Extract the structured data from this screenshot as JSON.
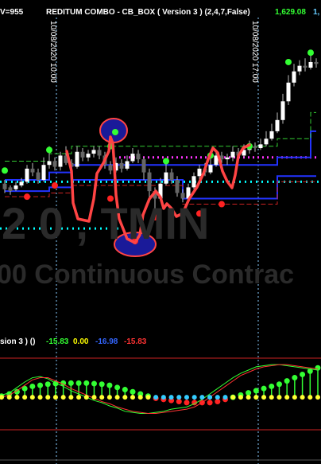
{
  "header": {
    "volume": "V=955",
    "study": "REDITUM COMBO - CB_BOX ( Version 3 ) (2,4,7,False)",
    "last_value": "1,629.08",
    "last_value_2": "1,",
    "colors": {
      "text": "#ffffff",
      "value": "#33ff33",
      "value2": "#66ccff"
    }
  },
  "time_markers": [
    "10/08/2020 10:00",
    "10/08/2020 17:00"
  ],
  "watermark": {
    "line1": "2 0 , ΤΜΙΝ",
    "line2": "00 Continuous Contrac"
  },
  "indicator_header": {
    "name": "sion 3 ) ()",
    "values": [
      "-15.83",
      "0.00",
      "-16.98",
      "-15.83"
    ],
    "colors": [
      "#33ff33",
      "#ffff00",
      "#3366ff",
      "#ff3333"
    ]
  },
  "chart_data": [
    {
      "type": "candlestick",
      "title": "",
      "candles": [
        {
          "o": 38,
          "c": 35,
          "h": 40,
          "l": 33
        },
        {
          "o": 36,
          "c": 34,
          "h": 37,
          "l": 32
        },
        {
          "o": 35,
          "c": 37,
          "h": 39,
          "l": 34
        },
        {
          "o": 37,
          "c": 39,
          "h": 41,
          "l": 36
        },
        {
          "o": 39,
          "c": 46,
          "h": 48,
          "l": 38
        },
        {
          "o": 46,
          "c": 44,
          "h": 49,
          "l": 42
        },
        {
          "o": 44,
          "c": 40,
          "h": 46,
          "l": 38
        },
        {
          "o": 40,
          "c": 48,
          "h": 52,
          "l": 39
        },
        {
          "o": 48,
          "c": 50,
          "h": 58,
          "l": 46
        },
        {
          "o": 50,
          "c": 47,
          "h": 52,
          "l": 45
        },
        {
          "o": 47,
          "c": 53,
          "h": 55,
          "l": 45
        },
        {
          "o": 53,
          "c": 49,
          "h": 58,
          "l": 48
        },
        {
          "o": 49,
          "c": 47,
          "h": 51,
          "l": 44
        },
        {
          "o": 47,
          "c": 55,
          "h": 58,
          "l": 46
        },
        {
          "o": 55,
          "c": 52,
          "h": 57,
          "l": 50
        },
        {
          "o": 52,
          "c": 54,
          "h": 56,
          "l": 50
        },
        {
          "o": 54,
          "c": 56,
          "h": 58,
          "l": 52
        },
        {
          "o": 56,
          "c": 53,
          "h": 58,
          "l": 51
        },
        {
          "o": 53,
          "c": 48,
          "h": 55,
          "l": 46
        },
        {
          "o": 48,
          "c": 45,
          "h": 50,
          "l": 43
        },
        {
          "o": 45,
          "c": 49,
          "h": 52,
          "l": 44
        },
        {
          "o": 49,
          "c": 46,
          "h": 51,
          "l": 44
        },
        {
          "o": 46,
          "c": 50,
          "h": 53,
          "l": 45
        },
        {
          "o": 50,
          "c": 54,
          "h": 57,
          "l": 49
        },
        {
          "o": 54,
          "c": 51,
          "h": 56,
          "l": 49
        },
        {
          "o": 51,
          "c": 44,
          "h": 52,
          "l": 40
        },
        {
          "o": 44,
          "c": 34,
          "h": 46,
          "l": 28
        },
        {
          "o": 34,
          "c": 30,
          "h": 36,
          "l": 24
        },
        {
          "o": 30,
          "c": 38,
          "h": 41,
          "l": 29
        },
        {
          "o": 38,
          "c": 44,
          "h": 50,
          "l": 37
        },
        {
          "o": 44,
          "c": 40,
          "h": 46,
          "l": 38
        },
        {
          "o": 40,
          "c": 33,
          "h": 42,
          "l": 31
        },
        {
          "o": 33,
          "c": 30,
          "h": 35,
          "l": 28
        },
        {
          "o": 30,
          "c": 36,
          "h": 38,
          "l": 29
        },
        {
          "o": 36,
          "c": 42,
          "h": 44,
          "l": 35
        },
        {
          "o": 42,
          "c": 46,
          "h": 48,
          "l": 40
        },
        {
          "o": 46,
          "c": 44,
          "h": 49,
          "l": 42
        },
        {
          "o": 44,
          "c": 48,
          "h": 52,
          "l": 43
        },
        {
          "o": 48,
          "c": 53,
          "h": 56,
          "l": 47
        },
        {
          "o": 53,
          "c": 51,
          "h": 55,
          "l": 49
        },
        {
          "o": 51,
          "c": 52,
          "h": 54,
          "l": 48
        },
        {
          "o": 52,
          "c": 55,
          "h": 58,
          "l": 50
        },
        {
          "o": 55,
          "c": 53,
          "h": 57,
          "l": 51
        },
        {
          "o": 53,
          "c": 56,
          "h": 59,
          "l": 52
        },
        {
          "o": 56,
          "c": 58,
          "h": 61,
          "l": 54
        },
        {
          "o": 58,
          "c": 57,
          "h": 60,
          "l": 55
        },
        {
          "o": 57,
          "c": 59,
          "h": 62,
          "l": 56
        },
        {
          "o": 59,
          "c": 62,
          "h": 66,
          "l": 58
        },
        {
          "o": 62,
          "c": 66,
          "h": 70,
          "l": 61
        },
        {
          "o": 66,
          "c": 72,
          "h": 76,
          "l": 65
        },
        {
          "o": 72,
          "c": 82,
          "h": 86,
          "l": 70
        },
        {
          "o": 82,
          "c": 92,
          "h": 96,
          "l": 80
        },
        {
          "o": 92,
          "c": 98,
          "h": 102,
          "l": 90
        },
        {
          "o": 98,
          "c": 101,
          "h": 104,
          "l": 96
        },
        {
          "o": 101,
          "c": 100,
          "h": 105,
          "l": 98
        },
        {
          "o": 100,
          "c": 103,
          "h": 108,
          "l": 99
        },
        {
          "o": 103,
          "c": 102,
          "h": 105,
          "l": 100
        }
      ],
      "channel_upper": [
        40,
        40,
        40,
        40,
        40,
        40,
        40,
        40,
        44,
        44,
        44,
        44,
        48,
        48,
        48,
        48,
        48,
        48,
        48,
        48,
        48,
        48,
        48,
        48,
        48,
        48,
        48,
        48,
        48,
        48,
        48,
        48,
        48,
        48,
        48,
        48,
        48,
        48,
        48,
        48,
        48,
        48,
        48,
        48,
        48,
        48,
        48,
        48,
        48,
        52,
        52,
        52,
        52,
        52,
        52,
        66,
        66
      ],
      "channel_lower": [
        34,
        34,
        34,
        34,
        34,
        34,
        34,
        34,
        36,
        36,
        36,
        36,
        40,
        40,
        40,
        40,
        40,
        40,
        40,
        40,
        40,
        40,
        40,
        40,
        40,
        40,
        40,
        40,
        40,
        40,
        40,
        40,
        30,
        30,
        30,
        30,
        30,
        30,
        30,
        30,
        30,
        30,
        30,
        30,
        30,
        30,
        30,
        30,
        30,
        42,
        42,
        42,
        42,
        42,
        42,
        42,
        42
      ],
      "magenta_level": 52,
      "cyan_level": 39,
      "cyan_low_level": 14
    },
    {
      "type": "oscillator",
      "series": [
        {
          "values": [
            0.1,
            0.3,
            0.5,
            0.8,
            1.0,
            1.1,
            1.2,
            1.25,
            1.3,
            1.3,
            1.3,
            1.3,
            1.25,
            1.2,
            1.1,
            0.9,
            0.7,
            0.5,
            0.3,
            0.1,
            -0.1,
            -0.2,
            -0.3,
            -0.4,
            -0.5,
            -0.5,
            -0.5,
            -0.5,
            -0.4,
            -0.2,
            0.0,
            0.2,
            0.4,
            0.6,
            0.8,
            1.0,
            1.2,
            1.5,
            1.8,
            2.1,
            2.4,
            2.7
          ]
        },
        {
          "values": [
            0.2,
            0.4,
            0.9,
            1.4,
            1.8,
            1.9,
            1.7,
            1.3,
            1.0,
            0.6,
            0.3,
            0.0,
            -0.3,
            -0.5,
            -0.8,
            -1.0,
            -1.3,
            -1.4,
            -1.5,
            -1.5,
            -1.4,
            -1.3,
            -1.1,
            -1.0,
            -0.9,
            -0.6,
            -0.2,
            0.3,
            0.8,
            1.3,
            1.8,
            2.2,
            2.5,
            2.8,
            2.9,
            3.0,
            3.0,
            2.9,
            2.8,
            2.7,
            2.6,
            2.5
          ]
        },
        {
          "values": [
            0.0,
            0.2,
            0.6,
            1.1,
            1.6,
            1.8,
            1.8,
            1.5,
            1.2,
            0.8,
            0.5,
            0.2,
            -0.1,
            -0.4,
            -0.6,
            -0.9,
            -1.1,
            -1.3,
            -1.4,
            -1.5,
            -1.5,
            -1.4,
            -1.3,
            -1.2,
            -1.1,
            -0.9,
            -0.5,
            0.0,
            0.5,
            1.0,
            1.5,
            2.0,
            2.3,
            2.6,
            2.8,
            2.9,
            3.0,
            3.0,
            2.9,
            2.8,
            2.7,
            2.6
          ]
        }
      ],
      "ylim": [
        -3,
        3.6
      ]
    }
  ]
}
